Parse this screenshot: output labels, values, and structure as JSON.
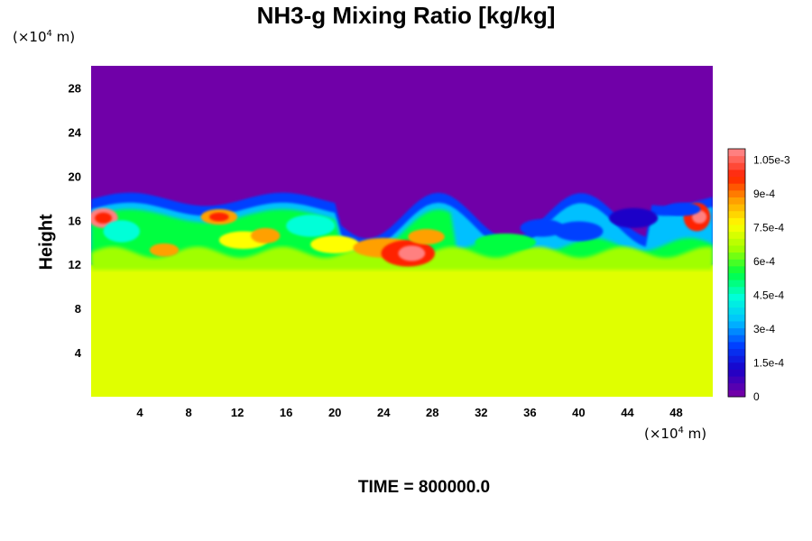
{
  "chart_data": {
    "type": "heatmap",
    "title": "NH3-g Mixing Ratio [kg/kg]",
    "ylabel": "Height",
    "xlabel": "",
    "x_unit": "(×10⁴ m)",
    "y_unit": "(×10⁴ m)",
    "x_unit_parts": {
      "pre": "(×10",
      "exp": "4",
      "post": " m)"
    },
    "y_unit_parts": {
      "pre": "(×10",
      "exp": "4",
      "post": " m)"
    },
    "x_ticks": [
      "4",
      "8",
      "12",
      "16",
      "20",
      "24",
      "28",
      "32",
      "36",
      "40",
      "44",
      "48"
    ],
    "y_ticks": [
      "4",
      "8",
      "12",
      "16",
      "20",
      "24",
      "28"
    ],
    "xlim": [
      0,
      51
    ],
    "ylim": [
      0,
      30
    ],
    "colorbar": {
      "labels": [
        "0",
        "1.5e-4",
        "3e-4",
        "4.5e-4",
        "6e-4",
        "7.5e-4",
        "9e-4",
        "1.05e-3"
      ],
      "label_values": [
        0,
        0.00015,
        0.0003,
        0.00045,
        0.0006,
        0.00075,
        0.0009,
        0.00105
      ],
      "range": [
        0,
        0.0011
      ]
    },
    "time_caption": "TIME = 800000.0",
    "regions": {
      "upper_layer": {
        "y_range": [
          18,
          30
        ],
        "value": 0
      },
      "lower_layer": {
        "y_range": [
          0,
          12
        ],
        "value": 0.0007
      },
      "mixing_layer_top_y": 18,
      "mixing_layer_bottom_y": 12,
      "max_value_region": {
        "x": 26,
        "y": 13,
        "value": 0.00105
      }
    },
    "colors": {
      "zero": "#7000a8",
      "lower_layer": "#e0ff00",
      "colormap": [
        "#7000a8",
        "#1a00c8",
        "#0040ff",
        "#00c0ff",
        "#00ffd8",
        "#00ff40",
        "#a0ff00",
        "#ffff00",
        "#ffa000",
        "#ff2000",
        "#ff8080"
      ]
    }
  }
}
